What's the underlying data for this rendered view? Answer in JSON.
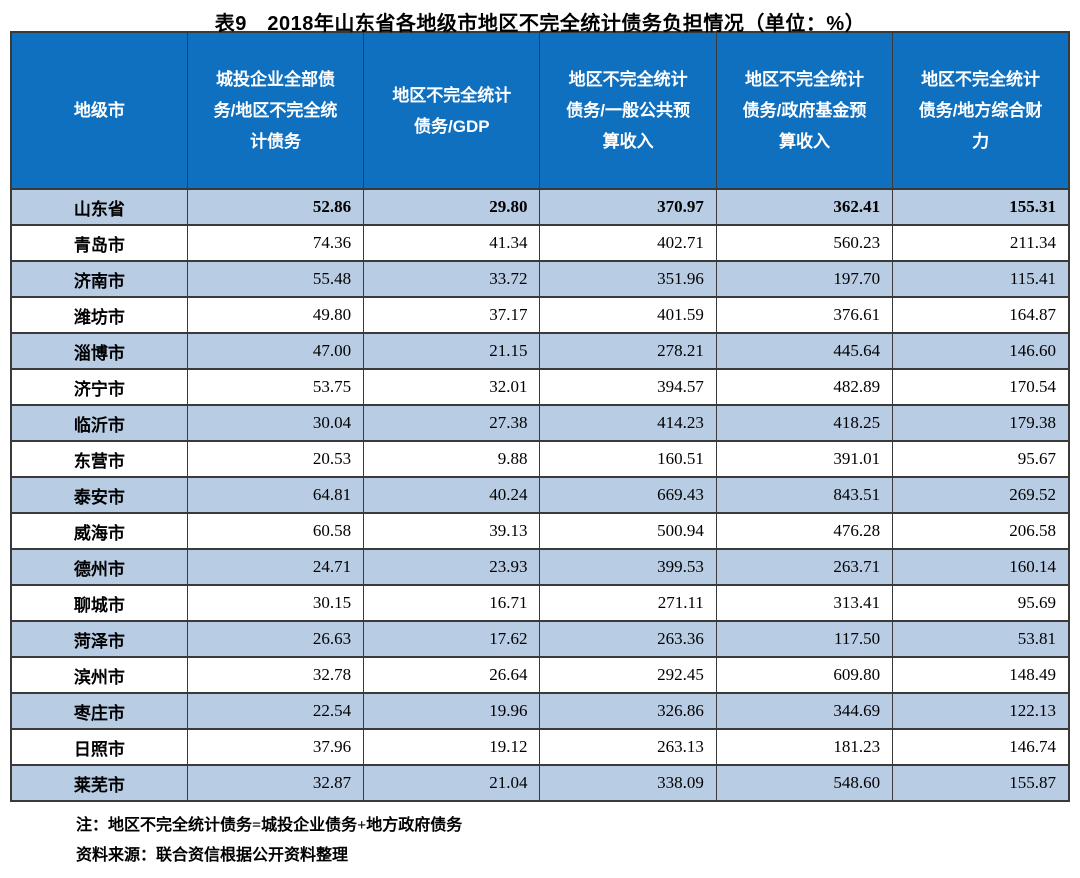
{
  "chart_data": {
    "type": "table",
    "title": "表9　2018年山东省各地级市地区不完全统计债务负担情况（单位：%）",
    "unit": "%",
    "columns": [
      "地级市",
      "城投企业全部债务/地区不完全统计债务",
      "地区不完全统计债务/GDP",
      "地区不完全统计债务/一般公共预算收入",
      "地区不完全统计债务/政府基金预算收入",
      "地区不完全统计债务/地方综合财力"
    ],
    "rows": [
      {
        "region": "山东省",
        "values": [
          "52.86",
          "29.80",
          "370.97",
          "362.41",
          "155.31"
        ],
        "emphasis": true
      },
      {
        "region": "青岛市",
        "values": [
          "74.36",
          "41.34",
          "402.71",
          "560.23",
          "211.34"
        ],
        "emphasis": false
      },
      {
        "region": "济南市",
        "values": [
          "55.48",
          "33.72",
          "351.96",
          "197.70",
          "115.41"
        ],
        "emphasis": false
      },
      {
        "region": "潍坊市",
        "values": [
          "49.80",
          "37.17",
          "401.59",
          "376.61",
          "164.87"
        ],
        "emphasis": false
      },
      {
        "region": "淄博市",
        "values": [
          "47.00",
          "21.15",
          "278.21",
          "445.64",
          "146.60"
        ],
        "emphasis": false
      },
      {
        "region": "济宁市",
        "values": [
          "53.75",
          "32.01",
          "394.57",
          "482.89",
          "170.54"
        ],
        "emphasis": false
      },
      {
        "region": "临沂市",
        "values": [
          "30.04",
          "27.38",
          "414.23",
          "418.25",
          "179.38"
        ],
        "emphasis": false
      },
      {
        "region": "东营市",
        "values": [
          "20.53",
          "9.88",
          "160.51",
          "391.01",
          "95.67"
        ],
        "emphasis": false
      },
      {
        "region": "泰安市",
        "values": [
          "64.81",
          "40.24",
          "669.43",
          "843.51",
          "269.52"
        ],
        "emphasis": false
      },
      {
        "region": "威海市",
        "values": [
          "60.58",
          "39.13",
          "500.94",
          "476.28",
          "206.58"
        ],
        "emphasis": false
      },
      {
        "region": "德州市",
        "values": [
          "24.71",
          "23.93",
          "399.53",
          "263.71",
          "160.14"
        ],
        "emphasis": false
      },
      {
        "region": "聊城市",
        "values": [
          "30.15",
          "16.71",
          "271.11",
          "313.41",
          "95.69"
        ],
        "emphasis": false
      },
      {
        "region": "菏泽市",
        "values": [
          "26.63",
          "17.62",
          "263.36",
          "117.50",
          "53.81"
        ],
        "emphasis": false
      },
      {
        "region": "滨州市",
        "values": [
          "32.78",
          "26.64",
          "292.45",
          "609.80",
          "148.49"
        ],
        "emphasis": false
      },
      {
        "region": "枣庄市",
        "values": [
          "22.54",
          "19.96",
          "326.86",
          "344.69",
          "122.13"
        ],
        "emphasis": false
      },
      {
        "region": "日照市",
        "values": [
          "37.96",
          "19.12",
          "263.13",
          "181.23",
          "146.74"
        ],
        "emphasis": false
      },
      {
        "region": "莱芜市",
        "values": [
          "32.87",
          "21.04",
          "338.09",
          "548.60",
          "155.87"
        ],
        "emphasis": false
      }
    ]
  },
  "notes": [
    "注：地区不完全统计债务=城投企业债务+地方政府债务",
    "资料来源：联合资信根据公开资料整理"
  ],
  "colors": {
    "header_bg": "#1070C0",
    "row_alt_bg": "#B8CCE4",
    "row_bg": "#FFFFFF",
    "border": "#3A3A3A",
    "header_text": "#FFFFFF",
    "text": "#000000"
  }
}
